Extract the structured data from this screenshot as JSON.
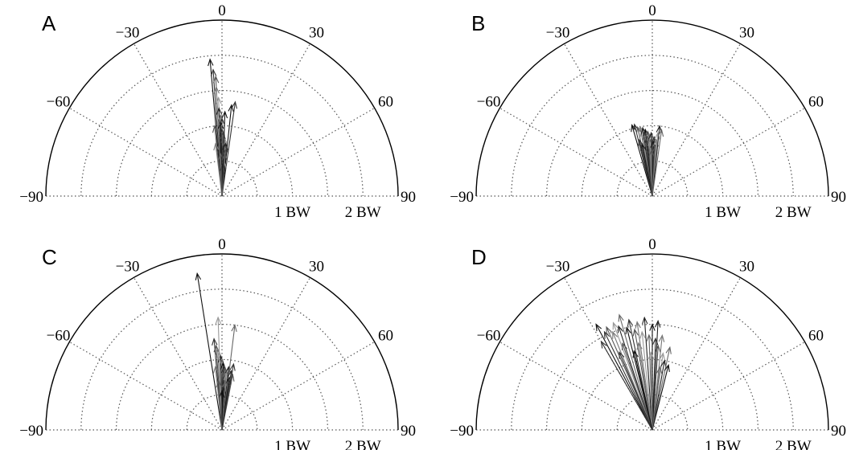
{
  "chart_data": [
    {
      "type": "polar-vectors",
      "panel": "A",
      "angle_ticks": [
        "-90",
        "-60",
        "-30",
        "0",
        "30",
        "60",
        "90"
      ],
      "radial_labels": [
        "1 BW",
        "2 BW"
      ],
      "theta_range_deg": [
        -90,
        90
      ],
      "r_max_bw": 2.5,
      "vectors": [
        {
          "angle": -5,
          "r": 1.95
        },
        {
          "angle": -4,
          "r": 1.8
        },
        {
          "angle": -3,
          "r": 1.7
        },
        {
          "angle": -3,
          "r": 1.55
        },
        {
          "angle": -2,
          "r": 1.4
        },
        {
          "angle": -2,
          "r": 1.25
        },
        {
          "angle": -1,
          "r": 1.15
        },
        {
          "angle": -1,
          "r": 1.05
        },
        {
          "angle": 0,
          "r": 0.95
        },
        {
          "angle": 1,
          "r": 0.9
        },
        {
          "angle": 2,
          "r": 0.85
        },
        {
          "angle": 3,
          "r": 0.8
        },
        {
          "angle": 4,
          "r": 0.75
        },
        {
          "angle": 5,
          "r": 0.7
        },
        {
          "angle": 6,
          "r": 1.3
        },
        {
          "angle": 8,
          "r": 1.35
        },
        {
          "angle": -6,
          "r": 1.0
        },
        {
          "angle": -7,
          "r": 0.75
        },
        {
          "angle": 3,
          "r": 0.5
        },
        {
          "angle": 1,
          "r": 0.45
        },
        {
          "angle": -2,
          "r": 0.6
        },
        {
          "angle": 2,
          "r": 1.2
        },
        {
          "angle": 0,
          "r": 1.1
        },
        {
          "angle": 4,
          "r": 0.6
        }
      ]
    },
    {
      "type": "polar-vectors",
      "panel": "B",
      "angle_ticks": [
        "-90",
        "-60",
        "-30",
        "0",
        "30",
        "60",
        "90"
      ],
      "radial_labels": [
        "1 BW",
        "2 BW"
      ],
      "theta_range_deg": [
        -90,
        90
      ],
      "r_max_bw": 2.5,
      "vectors": [
        {
          "angle": -16,
          "r": 1.05
        },
        {
          "angle": -14,
          "r": 1.05
        },
        {
          "angle": -12,
          "r": 1.0
        },
        {
          "angle": -10,
          "r": 1.0
        },
        {
          "angle": -9,
          "r": 0.95
        },
        {
          "angle": -8,
          "r": 0.98
        },
        {
          "angle": -7,
          "r": 0.9
        },
        {
          "angle": -6,
          "r": 0.95
        },
        {
          "angle": -5,
          "r": 0.85
        },
        {
          "angle": -4,
          "r": 0.92
        },
        {
          "angle": -3,
          "r": 0.88
        },
        {
          "angle": -2,
          "r": 0.8
        },
        {
          "angle": -1,
          "r": 0.9
        },
        {
          "angle": 0,
          "r": 0.86
        },
        {
          "angle": 1,
          "r": 0.78
        },
        {
          "angle": 2,
          "r": 0.84
        },
        {
          "angle": 3,
          "r": 0.7
        },
        {
          "angle": 4,
          "r": 0.8
        },
        {
          "angle": 5,
          "r": 0.9
        },
        {
          "angle": 6,
          "r": 1.0
        },
        {
          "angle": 8,
          "r": 0.95
        },
        {
          "angle": -11,
          "r": 0.75
        },
        {
          "angle": -13,
          "r": 0.82
        },
        {
          "angle": -1,
          "r": 0.65
        }
      ]
    },
    {
      "type": "polar-vectors",
      "panel": "C",
      "angle_ticks": [
        "-90",
        "-60",
        "-30",
        "0",
        "30",
        "60",
        "90"
      ],
      "radial_labels": [
        "1 BW",
        "2 BW"
      ],
      "theta_range_deg": [
        -90,
        90
      ],
      "r_max_bw": 2.5,
      "vectors": [
        {
          "angle": -9,
          "r": 2.25
        },
        {
          "angle": -5,
          "r": 1.3
        },
        {
          "angle": -4,
          "r": 1.2
        },
        {
          "angle": -3,
          "r": 1.15
        },
        {
          "angle": -2,
          "r": 1.1
        },
        {
          "angle": -1,
          "r": 1.05
        },
        {
          "angle": 0,
          "r": 1.0
        },
        {
          "angle": 1,
          "r": 0.95
        },
        {
          "angle": 2,
          "r": 0.9
        },
        {
          "angle": 3,
          "r": 0.88
        },
        {
          "angle": 4,
          "r": 0.85
        },
        {
          "angle": 5,
          "r": 0.8
        },
        {
          "angle": 6,
          "r": 0.9
        },
        {
          "angle": 7,
          "r": 1.5
        },
        {
          "angle": 8,
          "r": 0.75
        },
        {
          "angle": 9,
          "r": 0.85
        },
        {
          "angle": 11,
          "r": 0.8
        },
        {
          "angle": -6,
          "r": 0.9
        },
        {
          "angle": -2,
          "r": 1.6
        },
        {
          "angle": 2,
          "r": 0.6
        },
        {
          "angle": 4,
          "r": 0.7
        },
        {
          "angle": 0,
          "r": 0.55
        },
        {
          "angle": 10,
          "r": 0.95
        },
        {
          "angle": -4,
          "r": 0.7
        }
      ]
    },
    {
      "type": "polar-vectors",
      "panel": "D",
      "angle_ticks": [
        "-90",
        "-60",
        "-30",
        "0",
        "30",
        "60",
        "90"
      ],
      "radial_labels": [
        "1 BW",
        "2 BW"
      ],
      "theta_range_deg": [
        -90,
        90
      ],
      "r_max_bw": 2.5,
      "vectors": [
        {
          "angle": -28,
          "r": 1.7
        },
        {
          "angle": -26,
          "r": 1.55
        },
        {
          "angle": -24,
          "r": 1.6
        },
        {
          "angle": -22,
          "r": 1.5
        },
        {
          "angle": -20,
          "r": 1.62
        },
        {
          "angle": -18,
          "r": 1.55
        },
        {
          "angle": -16,
          "r": 1.7
        },
        {
          "angle": -14,
          "r": 1.5
        },
        {
          "angle": -12,
          "r": 1.6
        },
        {
          "angle": -10,
          "r": 1.45
        },
        {
          "angle": -8,
          "r": 1.55
        },
        {
          "angle": -6,
          "r": 1.4
        },
        {
          "angle": -4,
          "r": 1.6
        },
        {
          "angle": -2,
          "r": 1.35
        },
        {
          "angle": 0,
          "r": 1.5
        },
        {
          "angle": 2,
          "r": 1.3
        },
        {
          "angle": 4,
          "r": 1.2
        },
        {
          "angle": 6,
          "r": 1.35
        },
        {
          "angle": 8,
          "r": 1.1
        },
        {
          "angle": 10,
          "r": 1.0
        },
        {
          "angle": 12,
          "r": 1.2
        },
        {
          "angle": 14,
          "r": 0.95
        },
        {
          "angle": -30,
          "r": 1.45
        },
        {
          "angle": -19,
          "r": 1.3
        },
        {
          "angle": -9,
          "r": 1.25
        },
        {
          "angle": -1,
          "r": 1.1
        },
        {
          "angle": 3,
          "r": 1.55
        },
        {
          "angle": 7,
          "r": 0.9
        },
        {
          "angle": -13,
          "r": 1.15
        },
        {
          "angle": -23,
          "r": 1.2
        }
      ]
    }
  ]
}
